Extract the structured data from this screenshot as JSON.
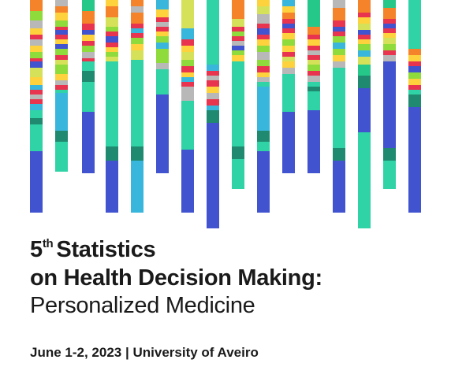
{
  "poster": {
    "edition_number": "5",
    "edition_suffix": "th",
    "title_line1_rest": "Statistics",
    "title_line2": "on Health Decision Making:",
    "subtitle": "Personalized Medicine",
    "dates": "June 1-2, 2023",
    "separator": "|",
    "venue": "University of Aveiro"
  },
  "palette": {
    "orange": "#f5832a",
    "gray": "#b8b8b8",
    "yellow": "#fdd23d",
    "lime": "#8fdb3c",
    "pale_lime": "#d6e15a",
    "red": "#e8344e",
    "blue": "#4153cf",
    "cyan": "#39b6dc",
    "mint": "#2fd3a5",
    "teal": "#1f8a6f",
    "green": "#25c889"
  }
}
